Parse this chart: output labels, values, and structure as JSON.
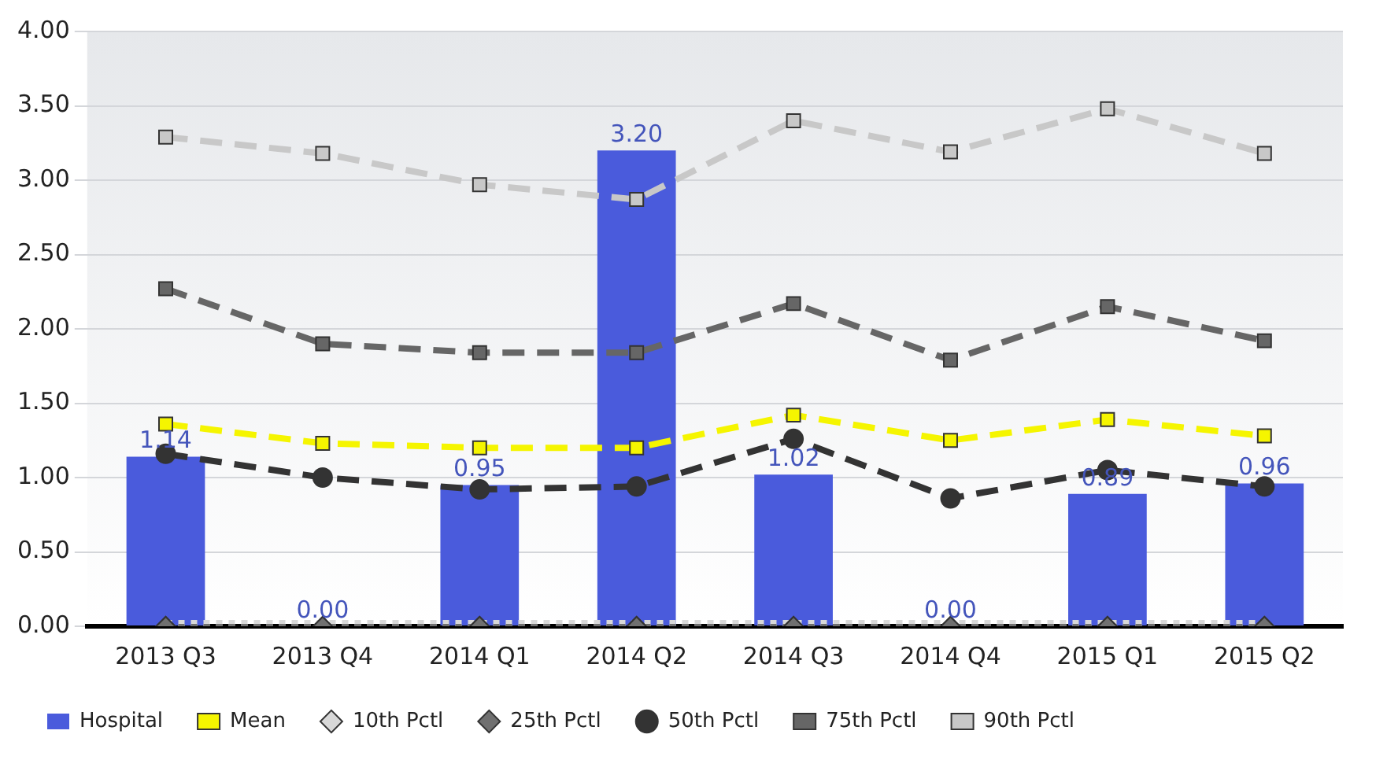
{
  "chart_data": {
    "type": "bar",
    "categories": [
      "2013 Q3",
      "2013 Q4",
      "2014 Q1",
      "2014 Q2",
      "2014 Q3",
      "2014 Q4",
      "2015 Q1",
      "2015 Q2"
    ],
    "series": [
      {
        "name": "Hospital",
        "color": "#4a5bdc",
        "values": [
          1.14,
          0,
          0.95,
          3.2,
          1.02,
          0,
          0.89,
          0.96
        ],
        "value_labels": [
          "1.14",
          "0.00",
          "0.95",
          "3.20",
          "1.02",
          "0.00",
          "0.89",
          "0.96"
        ]
      },
      {
        "name": "Mean",
        "type": "line",
        "color": "#f5f500",
        "marker": "square",
        "line_style": "dashed",
        "values": [
          1.36,
          1.23,
          1.2,
          1.2,
          1.42,
          1.25,
          1.39,
          1.28
        ]
      },
      {
        "name": "10th Pctl",
        "type": "line",
        "color": "#d8d8d8",
        "marker": "diamond",
        "line_style": "dotted",
        "values": [
          0,
          0,
          0,
          0,
          0,
          0,
          0,
          0
        ]
      },
      {
        "name": "25th Pctl",
        "type": "line",
        "color": "#707070",
        "marker": "diamond",
        "line_style": "dotted",
        "values": [
          0,
          0,
          0,
          0,
          0,
          0,
          0,
          0
        ]
      },
      {
        "name": "50th Pctl",
        "type": "line",
        "color": "#333333",
        "marker": "circle",
        "line_style": "dashed",
        "values": [
          1.16,
          1.0,
          0.92,
          0.94,
          1.26,
          0.86,
          1.05,
          0.94
        ]
      },
      {
        "name": "75th Pctl",
        "type": "line",
        "color": "#666666",
        "marker": "square",
        "line_style": "dashed",
        "values": [
          2.27,
          1.9,
          1.84,
          1.84,
          2.17,
          1.79,
          2.15,
          1.92
        ]
      },
      {
        "name": "90th Pctl",
        "type": "line",
        "color": "#c8c8c8",
        "marker": "square",
        "line_style": "dashed",
        "values": [
          3.29,
          3.18,
          2.97,
          2.87,
          3.4,
          3.19,
          3.48,
          3.18
        ]
      }
    ],
    "ylim": [
      0,
      4
    ],
    "yticks": [
      {
        "value": 0,
        "label": "0.00"
      },
      {
        "value": 0.5,
        "label": "0.50"
      },
      {
        "value": 1,
        "label": "1.00"
      },
      {
        "value": 1.5,
        "label": "1.50"
      },
      {
        "value": 2,
        "label": "2.00"
      },
      {
        "value": 2.5,
        "label": "2.50"
      },
      {
        "value": 3,
        "label": "3.00"
      },
      {
        "value": 3.5,
        "label": "3.50"
      },
      {
        "value": 4,
        "label": "4.00"
      }
    ],
    "grid": "y",
    "legend": "bottom"
  }
}
